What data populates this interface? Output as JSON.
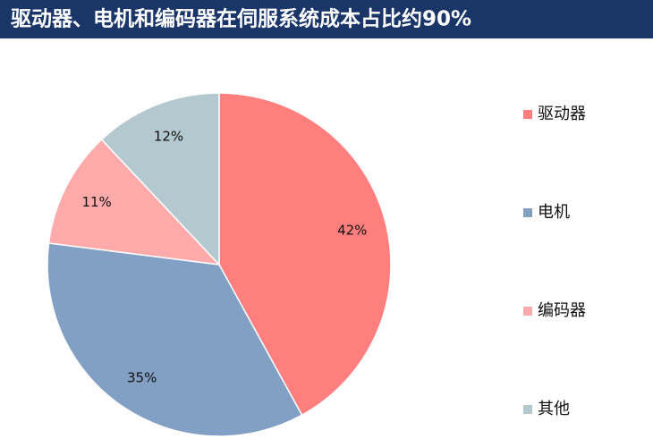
{
  "chart_data": {
    "type": "pie",
    "title": "驱动器、电机和编码器在伺服系统成本占比约90%",
    "categories": [
      "驱动器",
      "电机",
      "编码器",
      "其他"
    ],
    "values": [
      42,
      35,
      11,
      12
    ],
    "value_labels": [
      "42%",
      "35%",
      "11%",
      "12%"
    ],
    "colors": [
      "#ff7f7f",
      "#829fc4",
      "#ffaaaa",
      "#b4c8cf"
    ],
    "legend": "right"
  }
}
